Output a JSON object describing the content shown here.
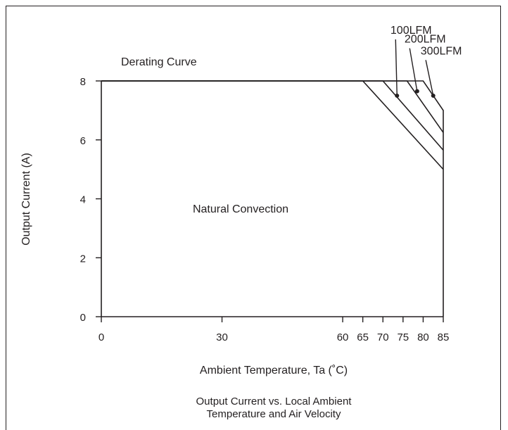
{
  "chart_data": {
    "type": "line",
    "title": "Derating Curve",
    "xlabel": "Ambient Temperature,  Ta (˚C)",
    "ylabel": "Output Current (A)",
    "caption_lines": [
      "Output Current vs. Local Ambient",
      "Temperature and Air Velocity"
    ],
    "annotation": "Natural Convection",
    "xlim": [
      0,
      85
    ],
    "ylim": [
      0,
      8
    ],
    "x_ticks": [
      0,
      30,
      60,
      65,
      70,
      75,
      80,
      85
    ],
    "y_ticks": [
      0,
      2,
      4,
      6,
      8
    ],
    "grid": false,
    "series": [
      {
        "x": [
          0,
          65,
          85
        ],
        "y": [
          8,
          8,
          5.0
        ]
      },
      {
        "name": "100LFM",
        "x": [
          0,
          70,
          85
        ],
        "y": [
          8,
          8,
          5.65
        ]
      },
      {
        "name": "200LFM",
        "x": [
          0,
          76,
          85
        ],
        "y": [
          8,
          8,
          6.25
        ]
      },
      {
        "name": "300LFM",
        "x": [
          0,
          80,
          85,
          85
        ],
        "y": [
          8,
          8,
          7.0,
          0
        ]
      }
    ],
    "series_labels": [
      {
        "name": "100LFM",
        "point": [
          73.5,
          7.5
        ],
        "label_at": [
          77,
          9.6
        ]
      },
      {
        "name": "200LFM",
        "point": [
          78.5,
          7.65
        ],
        "label_at": [
          80.5,
          9.3
        ]
      },
      {
        "name": "300LFM",
        "point": [
          82.5,
          7.5
        ],
        "label_at": [
          84.5,
          8.9
        ]
      }
    ]
  }
}
